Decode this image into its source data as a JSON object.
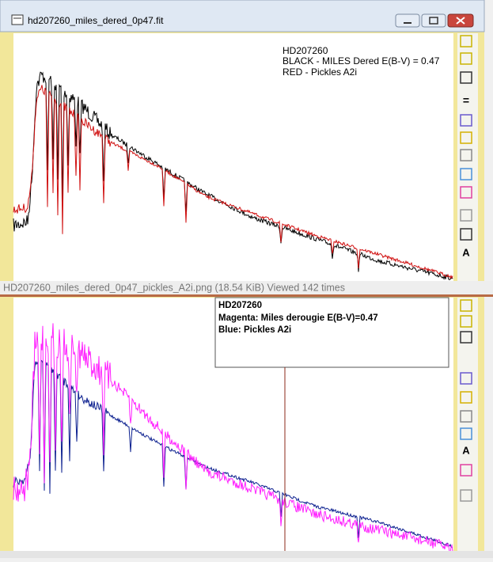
{
  "window": {
    "title": "hd207260_miles_dered_0p47.fit"
  },
  "top_plot": {
    "legend": [
      "HD207260",
      "BLACK - MILES Dered E(B-V) = 0.47",
      "RED -  Pickles A2i"
    ]
  },
  "caption": "HD207260_miles_dered_0p47_pickles_A2i.png (18.54 KiB) Viewed 142 times",
  "bottom_plot": {
    "legend": [
      "HD207260",
      "Magenta: Miles derougie E(B-V)=0.47",
      "Blue:  Pickles A2i"
    ]
  },
  "toolbar_glyphs": [
    "=",
    "A"
  ]
}
